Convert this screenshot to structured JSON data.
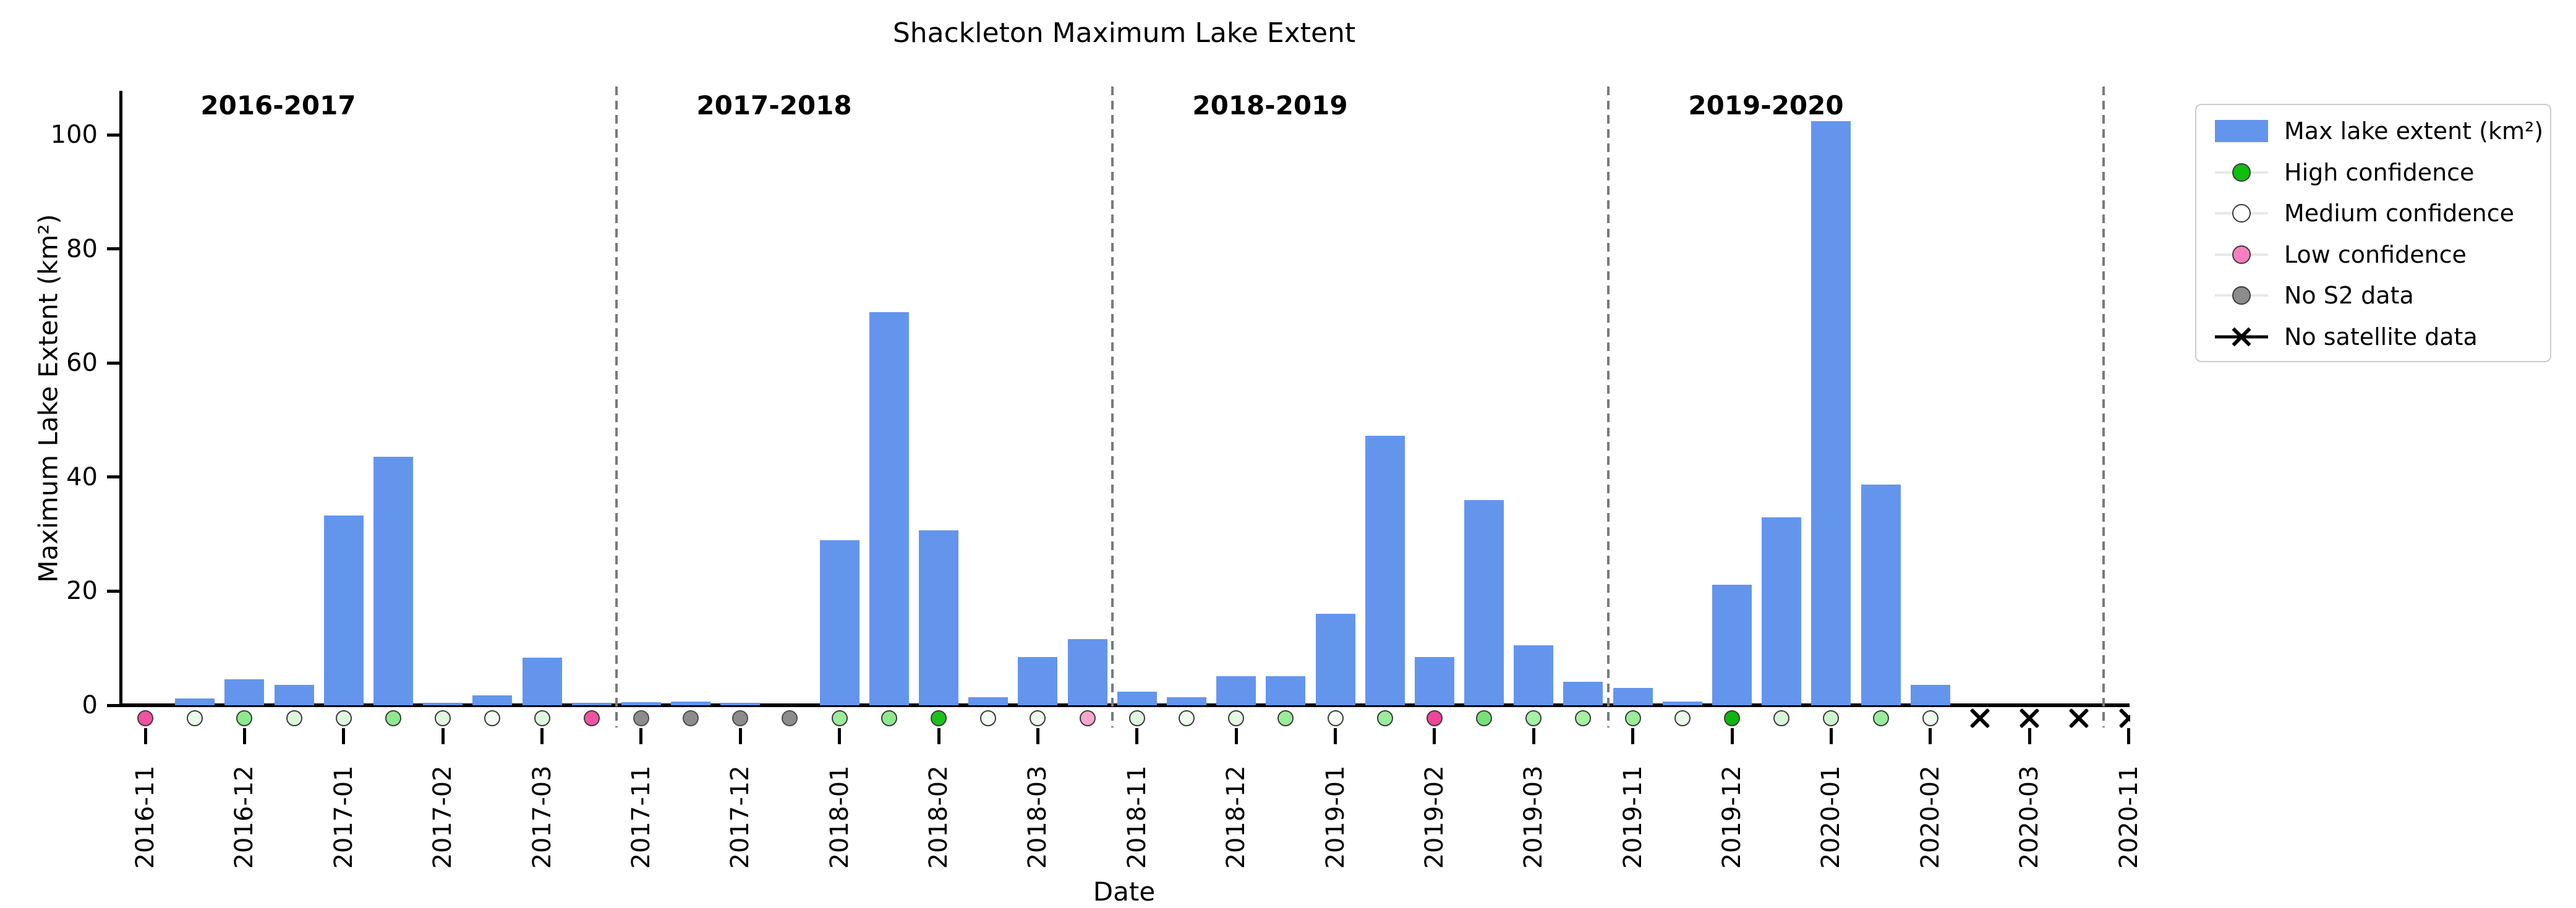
{
  "title": "Shackleton Maximum Lake Extent",
  "axes": {
    "xlabel": "Date",
    "ylabel": "Maximum Lake Extent (km²)",
    "yticks": [
      0,
      20,
      40,
      60,
      80,
      100
    ],
    "ylim": [
      0,
      108
    ],
    "grid": false
  },
  "seasons": [
    {
      "label": "2016-2017"
    },
    {
      "label": "2017-2018"
    },
    {
      "label": "2018-2019"
    },
    {
      "label": "2019-2020"
    }
  ],
  "legend": {
    "position": "outside-top-right",
    "items": [
      {
        "label": "Max lake extent (km²)",
        "marker": "rect",
        "color": "#6495ED"
      },
      {
        "label": "High confidence",
        "marker": "dot",
        "color": "#0FBE0F"
      },
      {
        "label": "Medium confidence",
        "marker": "dot",
        "color": "#FFFFFF"
      },
      {
        "label": "Low confidence",
        "marker": "dot",
        "color": "#F77FBE"
      },
      {
        "label": "No S2 data",
        "marker": "dot",
        "color": "#8C8C8C"
      },
      {
        "label": "No satellite data",
        "marker": "x",
        "color": "#000000"
      }
    ]
  },
  "chart_data": {
    "type": "bar",
    "title": "Shackleton Maximum Lake Extent",
    "xlabel": "Date",
    "ylabel": "Maximum Lake Extent (km²)",
    "ylim": [
      0,
      108
    ],
    "yticks": [
      0,
      20,
      40,
      60,
      80,
      100
    ],
    "bar_color": "#6495ED",
    "season_separators_after_index": [
      9,
      19,
      29,
      39
    ],
    "points": [
      {
        "date": "2016-11-01",
        "tick_label": "2016-11",
        "value": 0,
        "marker": "dot",
        "confidence": "low",
        "marker_color": "#F0539F"
      },
      {
        "date": "2016-11-15",
        "tick_label": null,
        "value": 1.2,
        "marker": "dot",
        "confidence": "medium",
        "marker_color": "#E9F9E9"
      },
      {
        "date": "2016-12-01",
        "tick_label": "2016-12",
        "value": 4.6,
        "marker": "dot",
        "confidence": "medium-high",
        "marker_color": "#8EE98E"
      },
      {
        "date": "2016-12-15",
        "tick_label": null,
        "value": 3.6,
        "marker": "dot",
        "confidence": "medium",
        "marker_color": "#DCF6DC"
      },
      {
        "date": "2017-01-01",
        "tick_label": "2017-01",
        "value": 33.3,
        "marker": "dot",
        "confidence": "medium",
        "marker_color": "#DFF7DF"
      },
      {
        "date": "2017-01-15",
        "tick_label": null,
        "value": 43.6,
        "marker": "dot",
        "confidence": "medium-high",
        "marker_color": "#8EE98E"
      },
      {
        "date": "2017-02-01",
        "tick_label": "2017-02",
        "value": 0.4,
        "marker": "dot",
        "confidence": "medium",
        "marker_color": "#DFF7DF"
      },
      {
        "date": "2017-02-15",
        "tick_label": null,
        "value": 1.7,
        "marker": "dot",
        "confidence": "medium",
        "marker_color": "#F4FCF4"
      },
      {
        "date": "2017-03-01",
        "tick_label": "2017-03",
        "value": 8.3,
        "marker": "dot",
        "confidence": "medium",
        "marker_color": "#DFF7DF"
      },
      {
        "date": "2017-03-15",
        "tick_label": null,
        "value": 0.4,
        "marker": "dot",
        "confidence": "low",
        "marker_color": "#F0539F"
      },
      {
        "date": "2017-11-01",
        "tick_label": "2017-11",
        "value": 0.5,
        "marker": "dot",
        "confidence": "no-s2",
        "marker_color": "#8C8C8C"
      },
      {
        "date": "2017-11-15",
        "tick_label": null,
        "value": 0.7,
        "marker": "dot",
        "confidence": "no-s2",
        "marker_color": "#8C8C8C"
      },
      {
        "date": "2017-12-01",
        "tick_label": "2017-12",
        "value": 0.4,
        "marker": "dot",
        "confidence": "no-s2",
        "marker_color": "#8C8C8C"
      },
      {
        "date": "2017-12-15",
        "tick_label": null,
        "value": 0,
        "marker": "dot",
        "confidence": "no-s2",
        "marker_color": "#8C8C8C"
      },
      {
        "date": "2018-01-01",
        "tick_label": "2018-01",
        "value": 28.9,
        "marker": "dot",
        "confidence": "medium-high",
        "marker_color": "#9AEC9A"
      },
      {
        "date": "2018-01-15",
        "tick_label": null,
        "value": 68.9,
        "marker": "dot",
        "confidence": "medium-high",
        "marker_color": "#8EE98E"
      },
      {
        "date": "2018-02-01",
        "tick_label": "2018-02",
        "value": 30.7,
        "marker": "dot",
        "confidence": "high",
        "marker_color": "#1DC21D"
      },
      {
        "date": "2018-02-15",
        "tick_label": null,
        "value": 1.4,
        "marker": "dot",
        "confidence": "medium",
        "marker_color": "#F4FCF4"
      },
      {
        "date": "2018-03-01",
        "tick_label": "2018-03",
        "value": 8.4,
        "marker": "dot",
        "confidence": "medium",
        "marker_color": "#EDFAED"
      },
      {
        "date": "2018-03-15",
        "tick_label": null,
        "value": 11.6,
        "marker": "dot",
        "confidence": "low",
        "marker_color": "#F9A6CC"
      },
      {
        "date": "2018-11-01",
        "tick_label": "2018-11",
        "value": 2.4,
        "marker": "dot",
        "confidence": "medium",
        "marker_color": "#DFF7DF"
      },
      {
        "date": "2018-11-15",
        "tick_label": null,
        "value": 1.4,
        "marker": "dot",
        "confidence": "medium",
        "marker_color": "#EDFAED"
      },
      {
        "date": "2018-12-01",
        "tick_label": "2018-12",
        "value": 5.1,
        "marker": "dot",
        "confidence": "medium",
        "marker_color": "#E5F8E5"
      },
      {
        "date": "2018-12-15",
        "tick_label": null,
        "value": 5.1,
        "marker": "dot",
        "confidence": "medium-high",
        "marker_color": "#9AEC9A"
      },
      {
        "date": "2019-01-01",
        "tick_label": "2019-01",
        "value": 16.0,
        "marker": "dot",
        "confidence": "medium",
        "marker_color": "#F4FCF4"
      },
      {
        "date": "2019-01-15",
        "tick_label": null,
        "value": 47.2,
        "marker": "dot",
        "confidence": "medium-high",
        "marker_color": "#9AEC9A"
      },
      {
        "date": "2019-02-01",
        "tick_label": "2019-02",
        "value": 8.5,
        "marker": "dot",
        "confidence": "low",
        "marker_color": "#F0449B"
      },
      {
        "date": "2019-02-15",
        "tick_label": null,
        "value": 36.0,
        "marker": "dot",
        "confidence": "medium-high",
        "marker_color": "#77E077"
      },
      {
        "date": "2019-03-01",
        "tick_label": "2019-03",
        "value": 10.5,
        "marker": "dot",
        "confidence": "medium-high",
        "marker_color": "#A5F0A5"
      },
      {
        "date": "2019-03-15",
        "tick_label": null,
        "value": 4.1,
        "marker": "dot",
        "confidence": "medium-high",
        "marker_color": "#A5F0A5"
      },
      {
        "date": "2019-11-01",
        "tick_label": "2019-11",
        "value": 3.0,
        "marker": "dot",
        "confidence": "medium-high",
        "marker_color": "#9AEC9A"
      },
      {
        "date": "2019-11-15",
        "tick_label": null,
        "value": 0.7,
        "marker": "dot",
        "confidence": "medium",
        "marker_color": "#E9F9E9"
      },
      {
        "date": "2019-12-01",
        "tick_label": "2019-12",
        "value": 21.1,
        "marker": "dot",
        "confidence": "high",
        "marker_color": "#0DB50D"
      },
      {
        "date": "2019-12-15",
        "tick_label": null,
        "value": 32.9,
        "marker": "dot",
        "confidence": "medium",
        "marker_color": "#D9F5D9"
      },
      {
        "date": "2020-01-01",
        "tick_label": "2020-01",
        "value": 102.4,
        "marker": "dot",
        "confidence": "medium",
        "marker_color": "#CFF3CF"
      },
      {
        "date": "2020-01-15",
        "tick_label": null,
        "value": 38.7,
        "marker": "dot",
        "confidence": "medium-high",
        "marker_color": "#9AEC9A"
      },
      {
        "date": "2020-02-01",
        "tick_label": "2020-02",
        "value": 3.6,
        "marker": "dot",
        "confidence": "medium",
        "marker_color": "#EDFAED"
      },
      {
        "date": "2020-02-15",
        "tick_label": null,
        "value": 0,
        "marker": "x",
        "confidence": "no-satellite",
        "marker_color": "#000000"
      },
      {
        "date": "2020-03-01",
        "tick_label": "2020-03",
        "value": 0,
        "marker": "x",
        "confidence": "no-satellite",
        "marker_color": "#000000"
      },
      {
        "date": "2020-03-15",
        "tick_label": null,
        "value": 0,
        "marker": "x",
        "confidence": "no-satellite",
        "marker_color": "#000000"
      },
      {
        "date": "2020-11-01",
        "tick_label": "2020-11",
        "value": 0,
        "marker": "x",
        "confidence": "no-satellite",
        "marker_color": "#000000"
      }
    ]
  }
}
